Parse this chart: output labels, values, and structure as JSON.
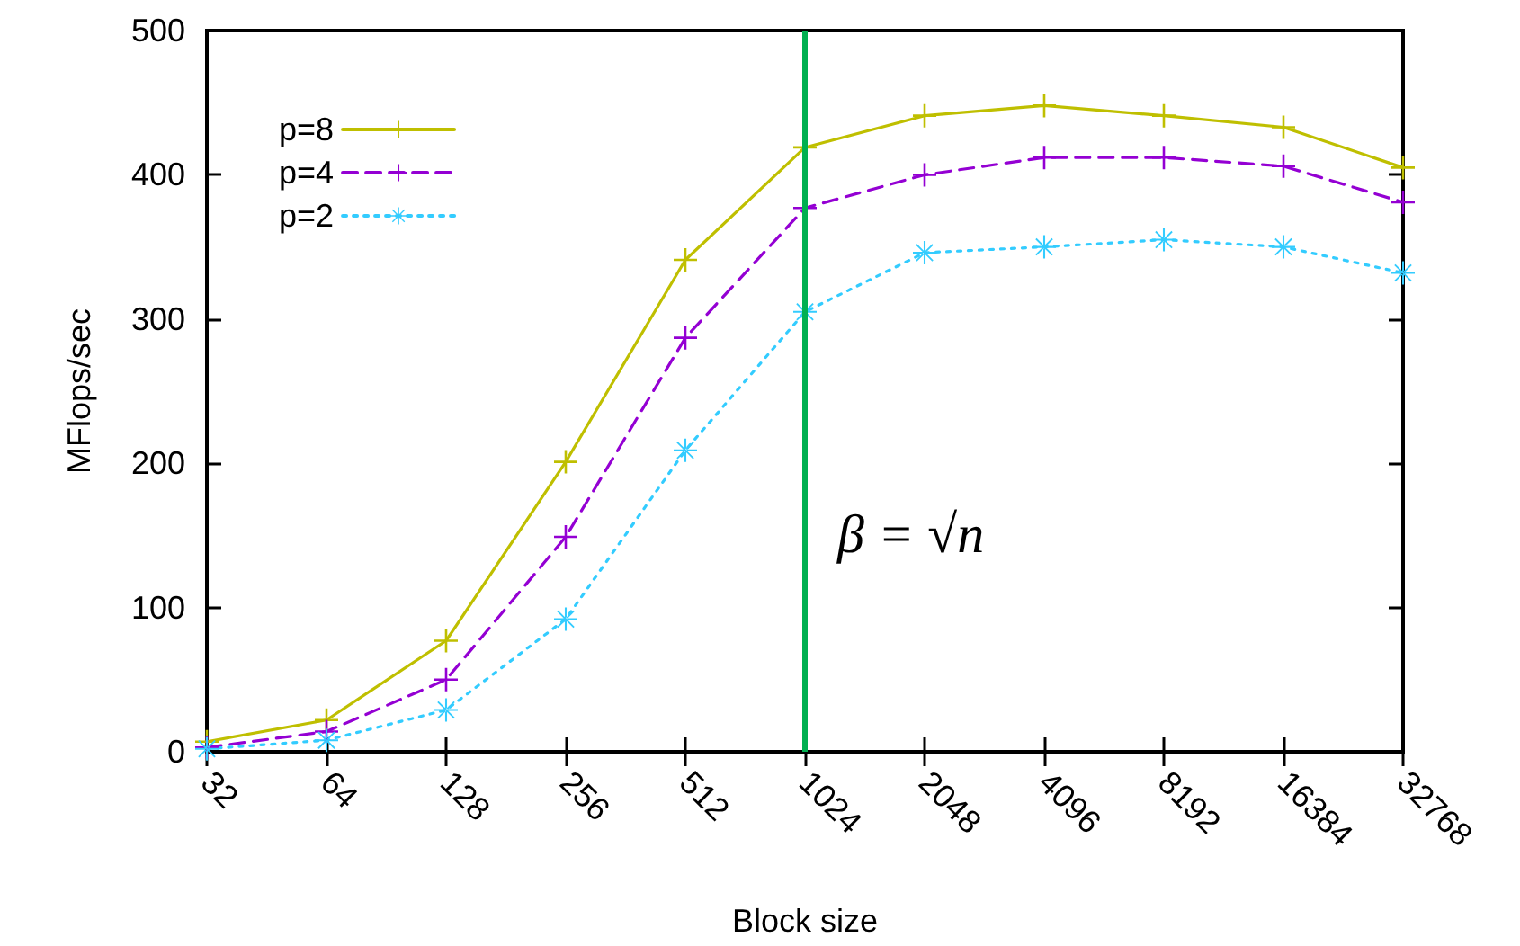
{
  "chart_data": {
    "type": "line",
    "xlabel": "Block size",
    "ylabel": "MFlops/sec",
    "categories": [
      "32",
      "64",
      "128",
      "256",
      "512",
      "1024",
      "2048",
      "4096",
      "8192",
      "16384",
      "32768"
    ],
    "series": [
      {
        "name": "p=8",
        "color": "#bfbf00",
        "marker": "cross",
        "line_style": "solid",
        "values": [
          7,
          22,
          77,
          201,
          341,
          419,
          441,
          448,
          441,
          433,
          405
        ]
      },
      {
        "name": "p=4",
        "color": "#9400d3",
        "marker": "cross",
        "line_style": "dashed",
        "values": [
          3,
          14,
          50,
          149,
          287,
          377,
          400,
          412,
          412,
          406,
          381
        ]
      },
      {
        "name": "p=2",
        "color": "#33ccff",
        "marker": "star",
        "line_style": "dotted",
        "values": [
          2,
          8,
          29,
          92,
          209,
          305,
          346,
          350,
          355,
          350,
          332
        ]
      }
    ],
    "ylim": [
      0,
      500
    ],
    "yticks": [
      0,
      100,
      200,
      300,
      400,
      500
    ],
    "ref_lines": [
      {
        "axis": "x",
        "value": "1024",
        "label": "β = √n",
        "color": "#00b050"
      }
    ],
    "grid": false,
    "legend": "top left"
  }
}
